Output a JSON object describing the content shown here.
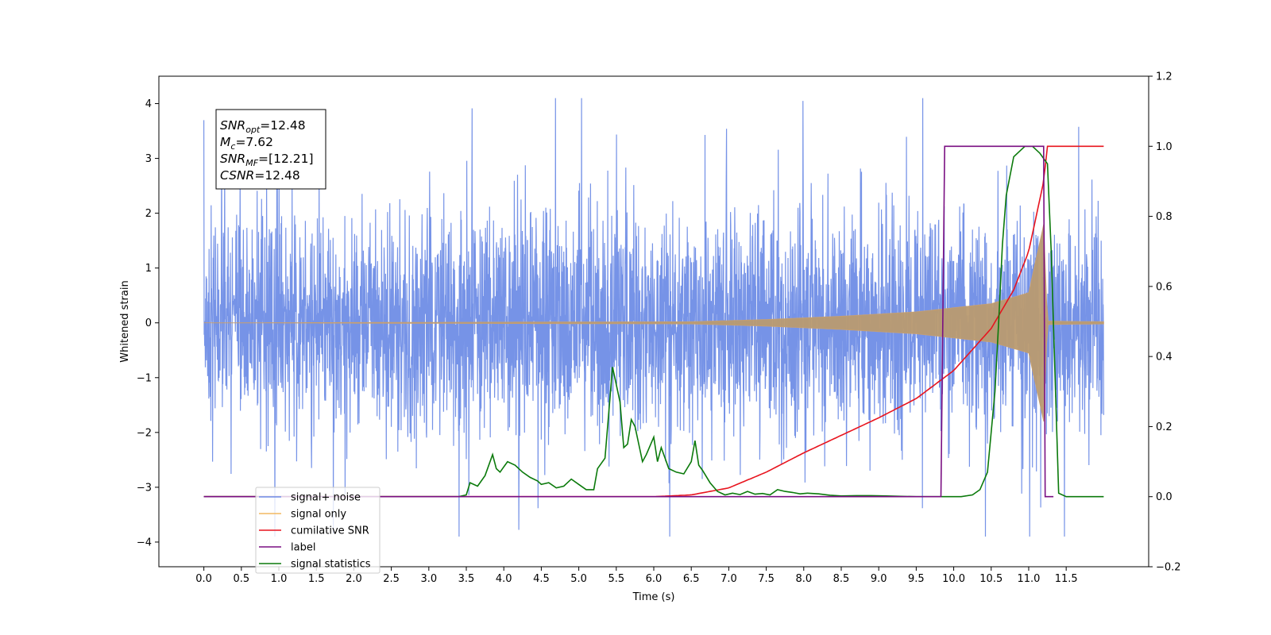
{
  "chart_data": {
    "type": "line",
    "title": "",
    "xlabel": "Time (s)",
    "ylabel": "Whitened strain",
    "xlim": [
      -0.6,
      12.6
    ],
    "xticks": [
      "0.0",
      "0.5",
      "1.0",
      "1.5",
      "2.0",
      "2.5",
      "3.0",
      "3.5",
      "4.0",
      "4.5",
      "5.0",
      "5.5",
      "6.0",
      "6.5",
      "7.0",
      "7.5",
      "8.0",
      "8.5",
      "9.0",
      "9.5",
      "10.0",
      "10.5",
      "11.0",
      "11.5"
    ],
    "ylim_left": [
      -4.45,
      4.5
    ],
    "yticks_left": [
      "4",
      "3",
      "2",
      "1",
      "0",
      "−1",
      "−2",
      "−3",
      "−4"
    ],
    "ylim_right": [
      -0.2,
      1.2
    ],
    "yticks_right": [
      "1.2",
      "1.0",
      "0.8",
      "0.6",
      "0.4",
      "0.2",
      "0.0",
      "−0.2"
    ],
    "grid": false,
    "legend_position": "bottom-left",
    "annotations": [
      {
        "sym": "SNR",
        "sub": "opt",
        "value": "=12.48"
      },
      {
        "sym": "M",
        "sub": "c",
        "value": "=7.62"
      },
      {
        "sym": "SNR",
        "sub": "MF",
        "value": "=[12.21]"
      },
      {
        "sym": "CSNR",
        "sub": "",
        "value": "=12.48"
      }
    ],
    "series": [
      {
        "name": "signal+ noise",
        "color": "#6f8de6",
        "axis": "left",
        "noise_envelope": {
          "t": [
            0,
            12
          ],
          "min": -3.9,
          "max": 4.1,
          "typical_abs": 1.6
        }
      },
      {
        "name": "signal only",
        "color": "#f2b860",
        "axis": "left",
        "chirp_envelope": {
          "t": [
            0,
            6.5,
            7.5,
            8.5,
            9.5,
            10.5,
            11.0,
            11.2,
            11.25,
            12.0
          ],
          "amp": [
            0.0,
            0.02,
            0.06,
            0.12,
            0.2,
            0.35,
            0.55,
            1.8,
            0.03,
            0.02
          ]
        }
      },
      {
        "name": "cumilative SNR",
        "color": "#e8141e",
        "axis": "right",
        "t": [
          0,
          6.0,
          6.5,
          7.0,
          7.5,
          8.0,
          8.5,
          9.0,
          9.5,
          10.0,
          10.5,
          10.8,
          11.0,
          11.2,
          11.25,
          12.0
        ],
        "values": [
          0.0,
          0.0,
          0.005,
          0.025,
          0.07,
          0.125,
          0.175,
          0.225,
          0.28,
          0.36,
          0.48,
          0.59,
          0.7,
          0.9,
          1.0,
          1.0
        ]
      },
      {
        "name": "label",
        "color": "#7a0f82",
        "axis": "right",
        "t": [
          0,
          9.83,
          9.88,
          11.2,
          11.22,
          11.33
        ],
        "values": [
          0.0,
          0.0,
          1.0,
          1.0,
          0.0,
          0.0
        ]
      },
      {
        "name": "signal statistics",
        "color": "#0b7a0b",
        "axis": "right",
        "t": [
          0,
          3.4,
          3.5,
          3.55,
          3.65,
          3.75,
          3.85,
          3.9,
          3.95,
          4.05,
          4.15,
          4.25,
          4.35,
          4.45,
          4.5,
          4.6,
          4.7,
          4.8,
          4.9,
          5.0,
          5.1,
          5.2,
          5.25,
          5.35,
          5.45,
          5.55,
          5.6,
          5.65,
          5.7,
          5.75,
          5.8,
          5.85,
          5.9,
          6.0,
          6.05,
          6.1,
          6.15,
          6.2,
          6.3,
          6.4,
          6.5,
          6.55,
          6.6,
          6.65,
          6.75,
          6.85,
          6.95,
          7.05,
          7.15,
          7.25,
          7.35,
          7.45,
          7.55,
          7.65,
          7.75,
          7.85,
          7.95,
          8.05,
          8.2,
          8.35,
          8.5,
          8.7,
          8.9,
          9.1,
          9.3,
          9.5,
          9.8,
          10.1,
          10.25,
          10.35,
          10.45,
          10.55,
          10.6,
          10.65,
          10.7,
          10.8,
          10.9,
          10.95,
          11.05,
          11.15,
          11.25,
          11.3,
          11.4,
          11.5,
          12.0
        ],
        "values": [
          0.0,
          0.0,
          0.005,
          0.04,
          0.03,
          0.06,
          0.12,
          0.08,
          0.07,
          0.1,
          0.09,
          0.07,
          0.055,
          0.045,
          0.035,
          0.04,
          0.025,
          0.03,
          0.05,
          0.035,
          0.02,
          0.02,
          0.08,
          0.11,
          0.37,
          0.27,
          0.14,
          0.15,
          0.22,
          0.2,
          0.15,
          0.1,
          0.12,
          0.17,
          0.1,
          0.14,
          0.11,
          0.08,
          0.07,
          0.065,
          0.1,
          0.16,
          0.09,
          0.075,
          0.04,
          0.015,
          0.005,
          0.01,
          0.006,
          0.015,
          0.007,
          0.009,
          0.005,
          0.02,
          0.015,
          0.012,
          0.008,
          0.01,
          0.008,
          0.004,
          0.002,
          0.003,
          0.003,
          0.002,
          0.001,
          0.0,
          0.0,
          0.0,
          0.005,
          0.02,
          0.07,
          0.3,
          0.5,
          0.72,
          0.86,
          0.97,
          0.99,
          1.0,
          1.0,
          0.98,
          0.95,
          0.7,
          0.01,
          0.0,
          0.0
        ]
      }
    ]
  }
}
